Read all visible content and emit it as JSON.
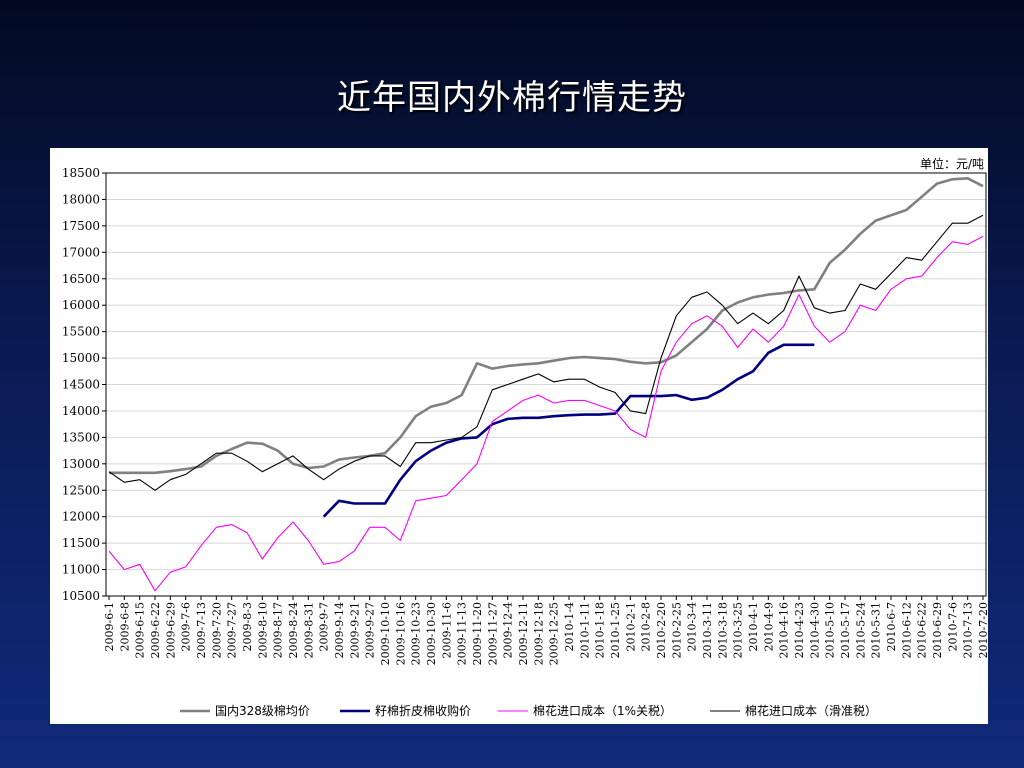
{
  "slide": {
    "title": "近年国内外棉行情走势"
  },
  "chart_data": {
    "type": "line",
    "unit_label": "单位：元/吨",
    "ylim": [
      10500,
      18500
    ],
    "yticks": [
      10500,
      11000,
      11500,
      12000,
      12500,
      13000,
      13500,
      14000,
      14500,
      15000,
      15500,
      16000,
      16500,
      17000,
      17500,
      18000,
      18500
    ],
    "grid": true,
    "legend_position": "bottom",
    "x_axis_dates": [
      "2009-6-1",
      "2009-6-8",
      "2009-6-15",
      "2009-6-22",
      "2009-6-29",
      "2009-7-6",
      "2009-7-13",
      "2009-7-20",
      "2009-7-27",
      "2009-8-3",
      "2009-8-10",
      "2009-8-17",
      "2009-8-24",
      "2009-8-31",
      "2009-9-7",
      "2009-9-14",
      "2009-9-21",
      "2009-9-27",
      "2009-10-10",
      "2009-10-16",
      "2009-10-23",
      "2009-10-30",
      "2009-11-6",
      "2009-11-13",
      "2009-11-20",
      "2009-11-27",
      "2009-12-4",
      "2009-12-11",
      "2009-12-18",
      "2009-12-25",
      "2010-1-4",
      "2010-1-11",
      "2010-1-18",
      "2010-1-25",
      "2010-2-1",
      "2010-2-8",
      "2010-2-20",
      "2010-2-25",
      "2010-3-4",
      "2010-3-11",
      "2010-3-18",
      "2010-3-25",
      "2010-4-1",
      "2010-4-9",
      "2010-4-16",
      "2010-4-23",
      "2010-4-30",
      "2010-5-10",
      "2010-5-17",
      "2010-5-24",
      "2010-5-31",
      "2010-6-7",
      "2010-6-12",
      "2010-6-22",
      "2010-6-29",
      "2010-7-6",
      "2010-7-13",
      "2010-7-20"
    ],
    "series": [
      {
        "name": "国内328级棉均价",
        "color": "#808080",
        "style": "thick",
        "values": [
          12830,
          12830,
          12830,
          12830,
          12860,
          12900,
          12950,
          13150,
          13280,
          13400,
          13380,
          13250,
          13000,
          12920,
          12950,
          13080,
          13120,
          13150,
          13200,
          13500,
          13900,
          14080,
          14150,
          14300,
          14900,
          14800,
          14850,
          14880,
          14900,
          14950,
          15000,
          15020,
          15000,
          14980,
          14930,
          14900,
          14920,
          15050,
          15300,
          15550,
          15900,
          16050,
          16150,
          16200,
          16230,
          16280,
          16300,
          16800,
          17050,
          17350,
          17600,
          17700,
          17800,
          18050,
          18300,
          18380,
          18400,
          18250
        ]
      },
      {
        "name": "籽棉折皮棉收购价",
        "color": "#000080",
        "style": "thick",
        "values": [
          null,
          null,
          null,
          null,
          null,
          null,
          null,
          null,
          null,
          null,
          null,
          null,
          null,
          null,
          12000,
          12300,
          12250,
          12250,
          12250,
          12700,
          13050,
          13250,
          13400,
          13480,
          13500,
          13750,
          13850,
          13870,
          13870,
          13900,
          13920,
          13930,
          13930,
          13950,
          14280,
          14280,
          14280,
          14300,
          14210,
          14250,
          14400,
          14600,
          14750,
          15100,
          15250,
          15250,
          15250,
          null,
          null,
          null,
          null,
          null,
          null,
          null,
          null,
          null,
          null,
          null
        ]
      },
      {
        "name": "棉花进口成本（1%关税）",
        "color": "#ff00ff",
        "style": "thin",
        "values": [
          11350,
          11000,
          11100,
          10600,
          10950,
          11050,
          11450,
          11800,
          11850,
          11700,
          11200,
          11600,
          11900,
          11550,
          11100,
          11150,
          11350,
          11800,
          11800,
          11550,
          12300,
          12350,
          12400,
          12700,
          13000,
          13800,
          14000,
          14200,
          14300,
          14150,
          14200,
          14200,
          14100,
          14000,
          13650,
          13500,
          14750,
          15300,
          15650,
          15800,
          15600,
          15200,
          15550,
          15300,
          15600,
          16200,
          15600,
          15300,
          15500,
          16000,
          15900,
          16300,
          16500,
          16550,
          16900,
          17200,
          17150,
          17300
        ]
      },
      {
        "name": "棉花进口成本（滑准税）",
        "color": "#000000",
        "style": "thin",
        "values": [
          12850,
          12650,
          12700,
          12500,
          12700,
          12800,
          13000,
          13200,
          13200,
          13050,
          12850,
          13000,
          13150,
          12900,
          12700,
          12900,
          13050,
          13150,
          13150,
          12950,
          13400,
          13400,
          13450,
          13500,
          13700,
          14400,
          14500,
          14600,
          14700,
          14550,
          14600,
          14600,
          14450,
          14350,
          14000,
          13950,
          15000,
          15800,
          16150,
          16250,
          16000,
          15650,
          15850,
          15650,
          15900,
          16550,
          15950,
          15850,
          15900,
          16400,
          16300,
          16600,
          16900,
          16850,
          17200,
          17550,
          17550,
          17700
        ]
      }
    ]
  }
}
